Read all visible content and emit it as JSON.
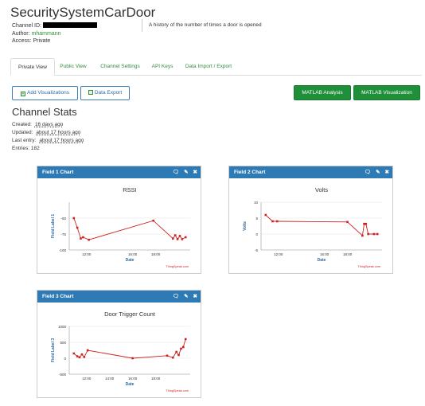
{
  "channel": {
    "title": "SecuritySystemCarDoor",
    "id_label": "Channel ID:",
    "author_label": "Author:",
    "author": "mhammann",
    "access_label": "Access:",
    "access": "Private",
    "description": "A history of the number of times a door is opened"
  },
  "tabs": [
    {
      "label": "Private View",
      "active": true
    },
    {
      "label": "Public View"
    },
    {
      "label": "Channel Settings"
    },
    {
      "label": "API Keys"
    },
    {
      "label": "Data Import / Export"
    }
  ],
  "buttons": {
    "add_vis": "Add Visualizations",
    "data_export": "Data Export",
    "matlab_analysis": "MATLAB Analysis",
    "matlab_vis": "MATLAB Visualization"
  },
  "stats": {
    "heading": "Channel Stats",
    "created_label": "Created:",
    "created": "16 days ago",
    "updated_label": "Updated:",
    "updated": "about 17 hours ago",
    "last_entry_label": "Last entry:",
    "last_entry": "about 17 hours ago",
    "entries_label": "Entries:",
    "entries": "182"
  },
  "cards": [
    {
      "header": "Field 1 Chart"
    },
    {
      "header": "Field 2 Chart"
    },
    {
      "header": "Field 3 Chart"
    }
  ],
  "colors": {
    "header_blue": "#2d7ab5",
    "series_red": "#cc2222",
    "green": "#1f8f3a"
  },
  "chart_data": [
    {
      "type": "line",
      "title": "RSSI",
      "xlabel": "Date",
      "ylabel": "Field Label 1",
      "ylim": [
        -100,
        -25
      ],
      "yticks": [
        -100,
        -75,
        -50
      ],
      "xticks": [
        "12:00",
        "16:00",
        "18:00"
      ],
      "credit": "ThingSpeak.com",
      "x": [
        10.9,
        11.2,
        11.5,
        11.7,
        12.2,
        17.8,
        19.5,
        19.7,
        19.9,
        20.1,
        20.3,
        20.6
      ],
      "values": [
        -50,
        -65,
        -82,
        -80,
        -84,
        -54,
        -82,
        -77,
        -83,
        -78,
        -83,
        -80
      ]
    },
    {
      "type": "line",
      "title": "Volts",
      "xlabel": "Date",
      "ylabel": "Volts",
      "ylim": [
        -5,
        10
      ],
      "yticks": [
        -5,
        0,
        5,
        10
      ],
      "xticks": [
        "12:00",
        "16:00",
        "18:00"
      ],
      "credit": "ThingSpeak.com",
      "x": [
        10.9,
        11.5,
        11.9,
        18.0,
        19.3,
        19.45,
        19.6,
        19.8,
        20.3,
        20.6
      ],
      "values": [
        6,
        4,
        4,
        3.8,
        -0.5,
        3.2,
        3.2,
        0,
        0,
        0
      ]
    },
    {
      "type": "line",
      "title": "Door Trigger Count",
      "xlabel": "Date",
      "ylabel": "Field Label 3",
      "ylim": [
        -500,
        1000
      ],
      "yticks": [
        -500,
        0,
        500,
        1000
      ],
      "xticks": [
        "12:00",
        "14:00",
        "16:00",
        "18:00"
      ],
      "credit": "ThingSpeak.com",
      "x": [
        10.9,
        11.2,
        11.4,
        11.6,
        11.8,
        12.1,
        16.0,
        19.0,
        19.5,
        19.8,
        20.0,
        20.2,
        20.4,
        20.6
      ],
      "values": [
        150,
        60,
        30,
        120,
        40,
        250,
        0,
        80,
        20,
        200,
        100,
        300,
        350,
        600
      ]
    }
  ]
}
